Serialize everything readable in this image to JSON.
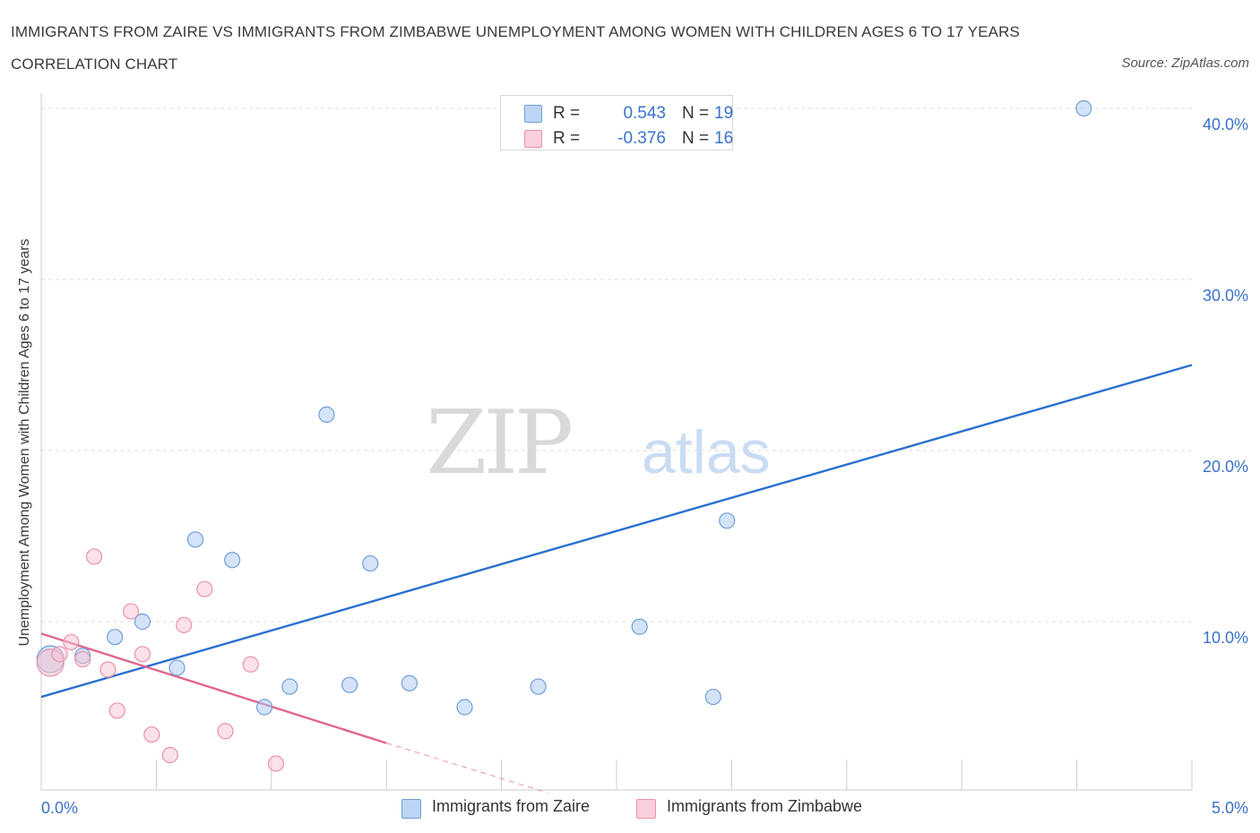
{
  "chart_data": {
    "type": "scatter",
    "title": "IMMIGRANTS FROM ZAIRE VS IMMIGRANTS FROM ZIMBABWE UNEMPLOYMENT AMONG WOMEN WITH CHILDREN AGES 6 TO 17 YEARS CORRELATION CHART",
    "source": "Source: ZipAtlas.com",
    "ylabel": "Unemployment Among Women with Children Ages 6 to 17 years",
    "xlim": [
      0,
      5
    ],
    "ylim": [
      0,
      40
    ],
    "x_tick_labels": [
      "0.0%",
      "5.0%"
    ],
    "y_ticks": [
      10,
      20,
      30,
      40
    ],
    "y_tick_labels": [
      "10.0%",
      "20.0%",
      "30.0%",
      "40.0%"
    ],
    "grid": true,
    "watermark": {
      "part1": "ZIP",
      "part2": "atlas"
    },
    "series": [
      {
        "name": "Immigrants from Zaire",
        "color": "#a9c8f0",
        "stroke": "#6f9fd8",
        "line_color": "#2a6fcf",
        "r_label": "R =",
        "r_value": "0.543",
        "n_label": "N =",
        "n_value": "19",
        "points": [
          {
            "x": 0.04,
            "y": 7.8,
            "big": true
          },
          {
            "x": 0.18,
            "y": 8.0
          },
          {
            "x": 0.32,
            "y": 9.1
          },
          {
            "x": 0.44,
            "y": 10.0
          },
          {
            "x": 0.59,
            "y": 7.3
          },
          {
            "x": 0.67,
            "y": 14.8
          },
          {
            "x": 0.83,
            "y": 13.6
          },
          {
            "x": 0.97,
            "y": 5.0
          },
          {
            "x": 1.08,
            "y": 6.2
          },
          {
            "x": 1.24,
            "y": 22.1
          },
          {
            "x": 1.34,
            "y": 6.3
          },
          {
            "x": 1.43,
            "y": 13.4
          },
          {
            "x": 1.6,
            "y": 6.4
          },
          {
            "x": 1.84,
            "y": 5.0
          },
          {
            "x": 2.16,
            "y": 6.2
          },
          {
            "x": 2.6,
            "y": 9.7
          },
          {
            "x": 2.92,
            "y": 5.6
          },
          {
            "x": 2.98,
            "y": 15.9
          },
          {
            "x": 4.53,
            "y": 40.0
          }
        ],
        "trend": {
          "x0": 0.0,
          "y0": 5.6,
          "x1": 5.0,
          "y1": 25.0
        }
      },
      {
        "name": "Immigrants from Zimbabwe",
        "color": "#f7c3d1",
        "stroke": "#e893ab",
        "line_color": "#e06690",
        "r_label": "R =",
        "r_value": "-0.376",
        "n_label": "N =",
        "n_value": "16",
        "points": [
          {
            "x": 0.04,
            "y": 7.6,
            "big": true
          },
          {
            "x": 0.08,
            "y": 8.1
          },
          {
            "x": 0.13,
            "y": 8.8
          },
          {
            "x": 0.18,
            "y": 7.8
          },
          {
            "x": 0.23,
            "y": 13.8
          },
          {
            "x": 0.29,
            "y": 7.2
          },
          {
            "x": 0.33,
            "y": 4.8
          },
          {
            "x": 0.39,
            "y": 10.6
          },
          {
            "x": 0.44,
            "y": 8.1
          },
          {
            "x": 0.48,
            "y": 3.4
          },
          {
            "x": 0.56,
            "y": 2.2
          },
          {
            "x": 0.62,
            "y": 9.8
          },
          {
            "x": 0.71,
            "y": 11.9
          },
          {
            "x": 0.8,
            "y": 3.6
          },
          {
            "x": 0.91,
            "y": 7.5
          },
          {
            "x": 1.02,
            "y": 1.7
          }
        ],
        "trend": {
          "x0": 0.0,
          "y0": 9.3,
          "x1": 1.5,
          "y1": 2.9,
          "dash_x1": 2.2,
          "dash_y1": 0.0
        }
      }
    ]
  }
}
